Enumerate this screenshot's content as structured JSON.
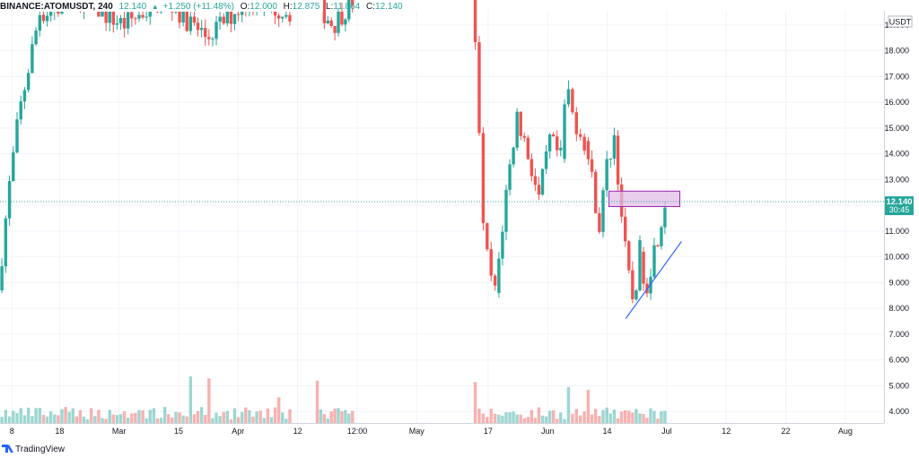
{
  "header": {
    "symbol": "BINANCE:ATOMUSDT, 240",
    "last": "12.140",
    "change": "+1.250 (+11.48%)",
    "open_label": "O:",
    "open": "12.000",
    "high_label": "H:",
    "high": "12.875",
    "low_label": "L:",
    "low": "11.864",
    "close_label": "C:",
    "close": "12.140",
    "up_arrow": "▲"
  },
  "currency": "USDT",
  "price_badge": {
    "price": "12.140",
    "countdown": "30:45"
  },
  "footer": {
    "brand": "TradingView"
  },
  "colors": {
    "up": "#26a69a",
    "down": "#ef5350",
    "line": "#2962ff",
    "zone_fill": "#e1bee7",
    "zone_border": "#9c27b0"
  },
  "chart_data": {
    "type": "candlestick",
    "y_axis": {
      "min": 3.55,
      "max": 19.55,
      "side": "right",
      "ticks": [
        4.0,
        5.0,
        6.0,
        7.0,
        8.0,
        9.0,
        10.0,
        11.0,
        12.0,
        13.0,
        14.0,
        15.0,
        16.0,
        17.0,
        18.0,
        19.0
      ],
      "tick_labels": [
        "4.000",
        "5.000",
        "6.000",
        "7.000",
        "8.000",
        "9.000",
        "10.000",
        "11.000",
        "12.000",
        "13.000",
        "14.000",
        "15.000",
        "16.000",
        "17.000",
        "18.000",
        "19.000"
      ]
    },
    "x_axis": {
      "tick_labels": [
        "8",
        "18",
        "Mar",
        "15",
        "Apr",
        "12",
        "12:00",
        "May",
        "17",
        "Jun",
        "14",
        "Jul",
        "12",
        "22",
        "Aug"
      ],
      "tick_positions": [
        0.2,
        1.0,
        2.0,
        3.0,
        4.0,
        5.0,
        6.0,
        7.0,
        8.2,
        9.2,
        10.2,
        11.2,
        12.2,
        13.2,
        14.2
      ]
    },
    "last_price": 12.14,
    "zone": {
      "x_start": 10.23,
      "x_end": 11.42,
      "low": 11.95,
      "high": 12.55
    },
    "trendline": {
      "x1": 10.51,
      "y1": 7.6,
      "x2": 11.45,
      "y2": 10.6
    },
    "segments": [
      {
        "from": 0.0,
        "to": 0.7,
        "path": [
          8.7,
          12.5,
          15.5,
          17.5,
          19.5
        ]
      },
      {
        "from": 0.7,
        "to": 4.9,
        "path": [
          19.4,
          20.0,
          19.0,
          20.0,
          18.5,
          20.0,
          19.5
        ]
      },
      {
        "from": 5.3,
        "to": 5.95,
        "path": [
          20.0,
          19.0,
          20.0
        ]
      },
      {
        "from": 7.95,
        "to": 8.35,
        "path": [
          20.0,
          17.0,
          11.0,
          9.5,
          8.6
        ]
      },
      {
        "from": 8.35,
        "to": 9.45,
        "path": [
          8.6,
          12.5,
          15.5,
          14.0,
          12.2,
          14.5,
          13.8
        ]
      },
      {
        "from": 9.45,
        "to": 9.85,
        "path": [
          13.8,
          16.8,
          15.5,
          15.0,
          14.5
        ]
      },
      {
        "from": 9.85,
        "to": 10.35,
        "path": [
          14.5,
          13.0,
          11.2,
          13.5,
          14.7
        ]
      },
      {
        "from": 10.35,
        "to": 10.78,
        "path": [
          14.7,
          12.0,
          9.5,
          8.2,
          10.2
        ]
      },
      {
        "from": 10.78,
        "to": 11.2,
        "path": [
          10.2,
          8.8,
          10.0,
          11.0,
          12.14
        ]
      }
    ],
    "volume": {
      "base": 2.0,
      "scale_max": 10.0
    }
  }
}
